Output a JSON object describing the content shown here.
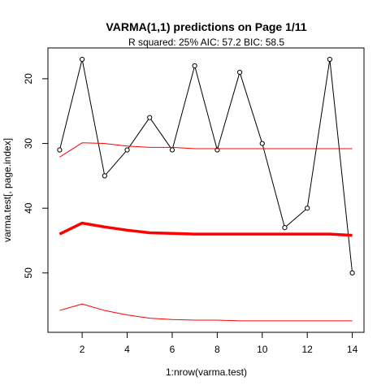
{
  "chart_data": {
    "type": "line",
    "title": "VARMA(1,1) predictions on Page 1/11",
    "subtitle": "R squared: 25% AIC: 57.2 BIC: 58.5",
    "xlabel": "1:nrow(varma.test)",
    "ylabel": "varma.test[, page.index]",
    "xlim": [
      1,
      14
    ],
    "ylim": [
      59,
      15
    ],
    "y_reversed": true,
    "grid": false,
    "x_ticks": [
      2,
      4,
      6,
      8,
      10,
      12,
      14
    ],
    "y_ticks": [
      20,
      30,
      40,
      50
    ],
    "x": [
      1,
      2,
      3,
      4,
      5,
      6,
      7,
      8,
      9,
      10,
      11,
      12,
      13,
      14
    ],
    "series": [
      {
        "style": "observed",
        "color": "#000000",
        "markers": true,
        "values": [
          31,
          17,
          35,
          31,
          26,
          31,
          18,
          31,
          19,
          30,
          43,
          40,
          17,
          50
        ]
      },
      {
        "style": "prediction",
        "color": "#ff0000",
        "values": [
          44,
          42.3,
          42.9,
          43.4,
          43.8,
          43.9,
          44.0,
          44.0,
          44.0,
          44.0,
          44.0,
          44.0,
          44.0,
          44.2
        ]
      },
      {
        "style": "upper-bound",
        "color": "#ff0000",
        "values": [
          32.1,
          29.9,
          30.0,
          30.4,
          30.6,
          30.6,
          30.8,
          30.8,
          30.8,
          30.8,
          30.8,
          30.8,
          30.8,
          30.8
        ]
      },
      {
        "style": "lower-bound",
        "color": "#ff0000",
        "values": [
          55.8,
          54.8,
          55.8,
          56.5,
          57.0,
          57.2,
          57.3,
          57.3,
          57.4,
          57.4,
          57.4,
          57.4,
          57.4,
          57.4
        ]
      }
    ]
  }
}
